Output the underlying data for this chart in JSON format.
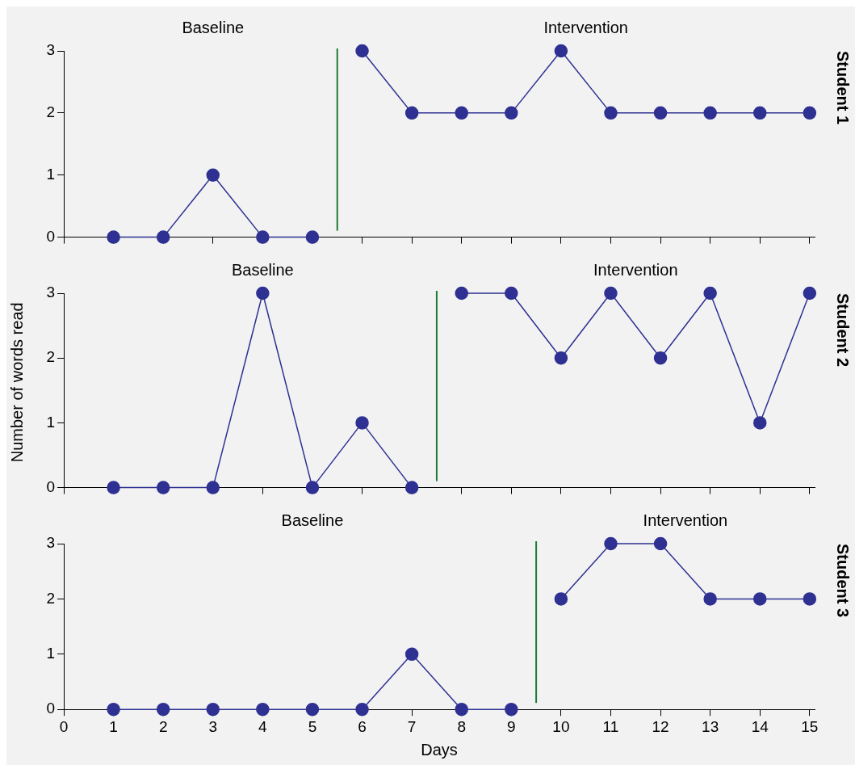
{
  "chart_data": [
    {
      "type": "line",
      "y2label": "Student 1",
      "annotations": [
        "Baseline",
        "Intervention"
      ],
      "xlim": [
        0,
        15.1
      ],
      "xticks": [
        0,
        1,
        2,
        3,
        4,
        5,
        6,
        7,
        8,
        9,
        10,
        11,
        12,
        13,
        14,
        15
      ],
      "ylim": [
        0,
        3
      ],
      "yticks": [
        0,
        1,
        2,
        3
      ],
      "tick_labels": "y",
      "marker": "circle",
      "legend": false,
      "grid": false,
      "series": [
        {
          "color": "#2e3192",
          "x": [
            1,
            2,
            3,
            4,
            5
          ],
          "values": [
            0,
            0,
            1,
            0,
            0
          ]
        },
        {
          "color": "#2e3192",
          "x": [
            6,
            7,
            8,
            9,
            10,
            11,
            12,
            13,
            14,
            15
          ],
          "values": [
            3,
            2,
            2,
            2,
            3,
            2,
            2,
            2,
            2,
            2
          ]
        }
      ],
      "ref_lines": [
        {
          "axis": "x",
          "value": 5.5,
          "color": "#1e7b34"
        }
      ]
    },
    {
      "type": "line",
      "y2label": "Student 2",
      "ylabel": "Number of words read",
      "annotations": [
        "Baseline",
        "Intervention"
      ],
      "xlim": [
        0,
        15.1
      ],
      "xticks": [
        0,
        1,
        2,
        3,
        4,
        5,
        6,
        7,
        8,
        9,
        10,
        11,
        12,
        13,
        14,
        15
      ],
      "ylim": [
        0,
        3
      ],
      "yticks": [
        0,
        1,
        2,
        3
      ],
      "tick_labels": "y",
      "marker": "circle",
      "legend": false,
      "grid": false,
      "series": [
        {
          "color": "#2e3192",
          "x": [
            1,
            2,
            3,
            4,
            5,
            6,
            7
          ],
          "values": [
            0,
            0,
            0,
            3,
            0,
            1,
            0
          ]
        },
        {
          "color": "#2e3192",
          "x": [
            8,
            9,
            10,
            11,
            12,
            13,
            14,
            15
          ],
          "values": [
            3,
            3,
            2,
            3,
            2,
            3,
            1,
            3
          ]
        }
      ],
      "ref_lines": [
        {
          "axis": "x",
          "value": 7.5,
          "color": "#1e7b34"
        }
      ]
    },
    {
      "type": "line",
      "y2label": "Student 3",
      "xlabel": "Days",
      "annotations": [
        "Baseline",
        "Intervention"
      ],
      "xlim": [
        0,
        15.1
      ],
      "xticks": [
        0,
        1,
        2,
        3,
        4,
        5,
        6,
        7,
        8,
        9,
        10,
        11,
        12,
        13,
        14,
        15
      ],
      "ylim": [
        0,
        3
      ],
      "yticks": [
        0,
        1,
        2,
        3
      ],
      "marker": "circle",
      "legend": false,
      "grid": false,
      "series": [
        {
          "color": "#2e3192",
          "x": [
            1,
            2,
            3,
            4,
            5,
            6,
            7,
            8,
            9
          ],
          "values": [
            0,
            0,
            0,
            0,
            0,
            0,
            1,
            0,
            0
          ]
        },
        {
          "color": "#2e3192",
          "x": [
            10,
            11,
            12,
            13,
            14,
            15
          ],
          "values": [
            2,
            3,
            3,
            2,
            2,
            2
          ]
        }
      ],
      "ref_lines": [
        {
          "axis": "x",
          "value": 9.5,
          "color": "#1e7b34"
        }
      ]
    }
  ]
}
